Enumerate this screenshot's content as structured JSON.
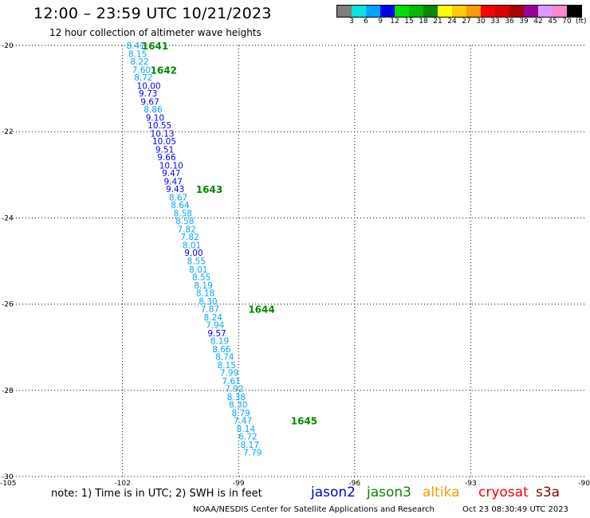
{
  "header": {
    "title": "12:00 – 23:59 UTC 10/21/2023",
    "subtitle": "12 hour collection of altimeter wave heights"
  },
  "colorbar": {
    "colors": [
      "#7f7f7f",
      "#00e5e5",
      "#00a5ff",
      "#0000ff",
      "#00dd00",
      "#00bb00",
      "#008800",
      "#ffff00",
      "#ffcc00",
      "#ff9900",
      "#ff0000",
      "#dd0000",
      "#aa0000",
      "#990099",
      "#dd99ff",
      "#ff88cc",
      "#000000"
    ],
    "labels": [
      "3",
      "6",
      "9",
      "12",
      "15",
      "18",
      "21",
      "24",
      "27",
      "30",
      "33",
      "36",
      "39",
      "42",
      "45",
      "70"
    ],
    "unit": "(ft)"
  },
  "chart_data": {
    "type": "scatter",
    "title": "12:00 – 23:59 UTC 10/21/2023",
    "subtitle": "12 hour collection of altimeter wave heights",
    "xlim": [
      -105,
      -90
    ],
    "ylim": [
      -30,
      -20
    ],
    "x_ticks": [
      -105,
      -102,
      -99,
      -96,
      -93,
      -90
    ],
    "y_ticks": [
      -20,
      -22,
      -24,
      -26,
      -28,
      -30
    ],
    "x_tick_labels": [
      "-105",
      "-102",
      "-99",
      "-96",
      "-93",
      "-90"
    ],
    "y_tick_labels": [
      "-20",
      "-22",
      "-24",
      "-26",
      "-28",
      "-30"
    ],
    "grid": true,
    "points": [
      {
        "lon": -101.9,
        "lat": -20.0,
        "swh": "8.41"
      },
      {
        "lon": -101.85,
        "lat": -20.19,
        "swh": "8.15"
      },
      {
        "lon": -101.8,
        "lat": -20.37,
        "swh": "8.22"
      },
      {
        "lon": -101.75,
        "lat": -20.56,
        "swh": "7.60"
      },
      {
        "lon": -101.7,
        "lat": -20.74,
        "swh": "8.72"
      },
      {
        "lon": -101.63,
        "lat": -20.93,
        "swh": "10.00"
      },
      {
        "lon": -101.58,
        "lat": -21.11,
        "swh": "9.73"
      },
      {
        "lon": -101.53,
        "lat": -21.3,
        "swh": "9.67"
      },
      {
        "lon": -101.45,
        "lat": -21.48,
        "swh": "8.86"
      },
      {
        "lon": -101.4,
        "lat": -21.67,
        "swh": "9.10"
      },
      {
        "lon": -101.35,
        "lat": -21.85,
        "swh": "10.55"
      },
      {
        "lon": -101.28,
        "lat": -22.04,
        "swh": "10.13"
      },
      {
        "lon": -101.23,
        "lat": -22.22,
        "swh": "10.05"
      },
      {
        "lon": -101.15,
        "lat": -22.41,
        "swh": "9.51"
      },
      {
        "lon": -101.1,
        "lat": -22.59,
        "swh": "9.66"
      },
      {
        "lon": -101.05,
        "lat": -22.78,
        "swh": "10.10"
      },
      {
        "lon": -100.98,
        "lat": -22.96,
        "swh": "9.47"
      },
      {
        "lon": -100.93,
        "lat": -23.15,
        "swh": "9.47"
      },
      {
        "lon": -100.88,
        "lat": -23.33,
        "swh": "9.43"
      },
      {
        "lon": -100.8,
        "lat": -23.52,
        "swh": "8.67"
      },
      {
        "lon": -100.75,
        "lat": -23.7,
        "swh": "8.64"
      },
      {
        "lon": -100.68,
        "lat": -23.89,
        "swh": "8.58"
      },
      {
        "lon": -100.63,
        "lat": -24.07,
        "swh": "8.58"
      },
      {
        "lon": -100.58,
        "lat": -24.26,
        "swh": "7.82"
      },
      {
        "lon": -100.5,
        "lat": -24.44,
        "swh": "7.82"
      },
      {
        "lon": -100.45,
        "lat": -24.63,
        "swh": "8.01"
      },
      {
        "lon": -100.4,
        "lat": -24.81,
        "swh": "9.00"
      },
      {
        "lon": -100.33,
        "lat": -25.0,
        "swh": "8.55"
      },
      {
        "lon": -100.28,
        "lat": -25.19,
        "swh": "8.01"
      },
      {
        "lon": -100.2,
        "lat": -25.37,
        "swh": "8.55"
      },
      {
        "lon": -100.15,
        "lat": -25.56,
        "swh": "8.19"
      },
      {
        "lon": -100.1,
        "lat": -25.74,
        "swh": "8.18"
      },
      {
        "lon": -100.03,
        "lat": -25.93,
        "swh": "8.30"
      },
      {
        "lon": -99.98,
        "lat": -26.11,
        "swh": "7.87"
      },
      {
        "lon": -99.9,
        "lat": -26.3,
        "swh": "8.24"
      },
      {
        "lon": -99.85,
        "lat": -26.48,
        "swh": "7.94"
      },
      {
        "lon": -99.8,
        "lat": -26.67,
        "swh": "9.57"
      },
      {
        "lon": -99.73,
        "lat": -26.85,
        "swh": "8.19"
      },
      {
        "lon": -99.68,
        "lat": -27.04,
        "swh": "8.66"
      },
      {
        "lon": -99.6,
        "lat": -27.22,
        "swh": "8.74"
      },
      {
        "lon": -99.55,
        "lat": -27.41,
        "swh": "8.15"
      },
      {
        "lon": -99.48,
        "lat": -27.59,
        "swh": "7.99"
      },
      {
        "lon": -99.43,
        "lat": -27.78,
        "swh": "7.61"
      },
      {
        "lon": -99.35,
        "lat": -27.96,
        "swh": "7.92"
      },
      {
        "lon": -99.3,
        "lat": -28.15,
        "swh": "8.38"
      },
      {
        "lon": -99.25,
        "lat": -28.33,
        "swh": "8.30"
      },
      {
        "lon": -99.18,
        "lat": -28.52,
        "swh": "8.79"
      },
      {
        "lon": -99.13,
        "lat": -28.7,
        "swh": "7.47"
      },
      {
        "lon": -99.05,
        "lat": -28.89,
        "swh": "8.14"
      },
      {
        "lon": -99.0,
        "lat": -29.07,
        "swh": "6.72"
      },
      {
        "lon": -98.95,
        "lat": -29.26,
        "swh": "8.17"
      },
      {
        "lon": -98.88,
        "lat": -29.44,
        "swh": "7.79"
      }
    ],
    "time_labels": [
      {
        "lon": -101.5,
        "lat": -20.0,
        "text": "1641"
      },
      {
        "lon": -101.28,
        "lat": -20.56,
        "text": "1642"
      },
      {
        "lon": -100.1,
        "lat": -23.33,
        "text": "1643"
      },
      {
        "lon": -98.75,
        "lat": -26.11,
        "text": "1644"
      },
      {
        "lon": -97.65,
        "lat": -28.7,
        "text": "1645"
      }
    ]
  },
  "note": "note:  1) Time is in UTC;  2) SWH is in feet",
  "legend": [
    {
      "name": "jason2",
      "color": "#0000cc"
    },
    {
      "name": "jason3",
      "color": "#008800"
    },
    {
      "name": "altika",
      "color": "#ff9900"
    },
    {
      "name": "cryosat",
      "color": "#ee0000"
    },
    {
      "name": "s3a",
      "color": "#880000"
    }
  ],
  "footer": {
    "source": "NOAA/NESDIS Center for Satellite Applications and Research",
    "timestamp": "Oct 23 08:30:49 UTC 2023"
  }
}
